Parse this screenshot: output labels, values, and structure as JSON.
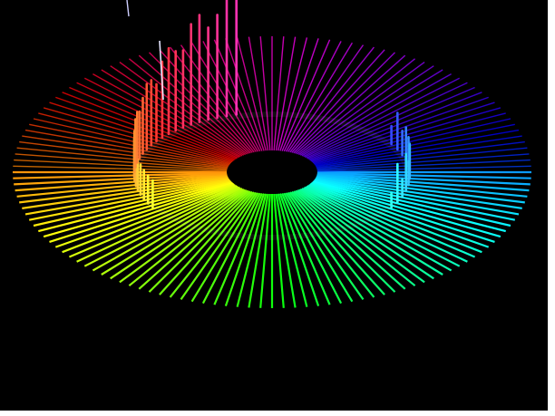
{
  "scene": {
    "subject": "radial-spectrum-visualization",
    "background_color": "#000000",
    "border_color": "#ffffff",
    "center_hole_color": "#000000",
    "spoke_count": 140,
    "peak_count": 38,
    "hue_start_deg": 290,
    "hue_direction": "counterclockwise-toward-red",
    "palette": [
      "#7a00ff",
      "#2d4bff",
      "#00c8ff",
      "#00ff88",
      "#33ff00",
      "#c8ff00",
      "#ffd000",
      "#ff5a00",
      "#ff0060",
      "#ff00c8"
    ]
  }
}
